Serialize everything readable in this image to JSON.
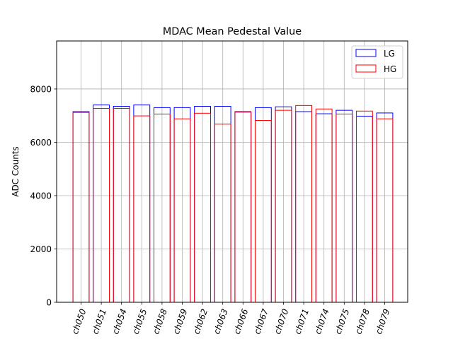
{
  "chart_data": {
    "type": "bar",
    "title": "MDAC Mean Pedestal Value",
    "xlabel": "",
    "ylabel": "ADC Counts",
    "categories": [
      "ch050",
      "ch051",
      "ch054",
      "ch055",
      "ch058",
      "ch059",
      "ch062",
      "ch063",
      "ch066",
      "ch067",
      "ch070",
      "ch071",
      "ch074",
      "ch075",
      "ch078",
      "ch079"
    ],
    "series": [
      {
        "name": "LG",
        "color": "#0000ff",
        "values": [
          7150,
          7400,
          7350,
          7400,
          7300,
          7300,
          7350,
          7350,
          7150,
          7300,
          7330,
          7150,
          7070,
          7200,
          6980,
          7100
        ]
      },
      {
        "name": "HG",
        "color": "#ff0000",
        "values": [
          7120,
          7270,
          7270,
          6990,
          7060,
          6880,
          7090,
          6680,
          7130,
          6820,
          7200,
          7380,
          7250,
          7060,
          7170,
          6880
        ]
      }
    ],
    "yticks": [
      0,
      2000,
      4000,
      6000,
      8000
    ],
    "ylim": [
      0,
      9800
    ],
    "grid": true,
    "legend_position": "top-right"
  }
}
